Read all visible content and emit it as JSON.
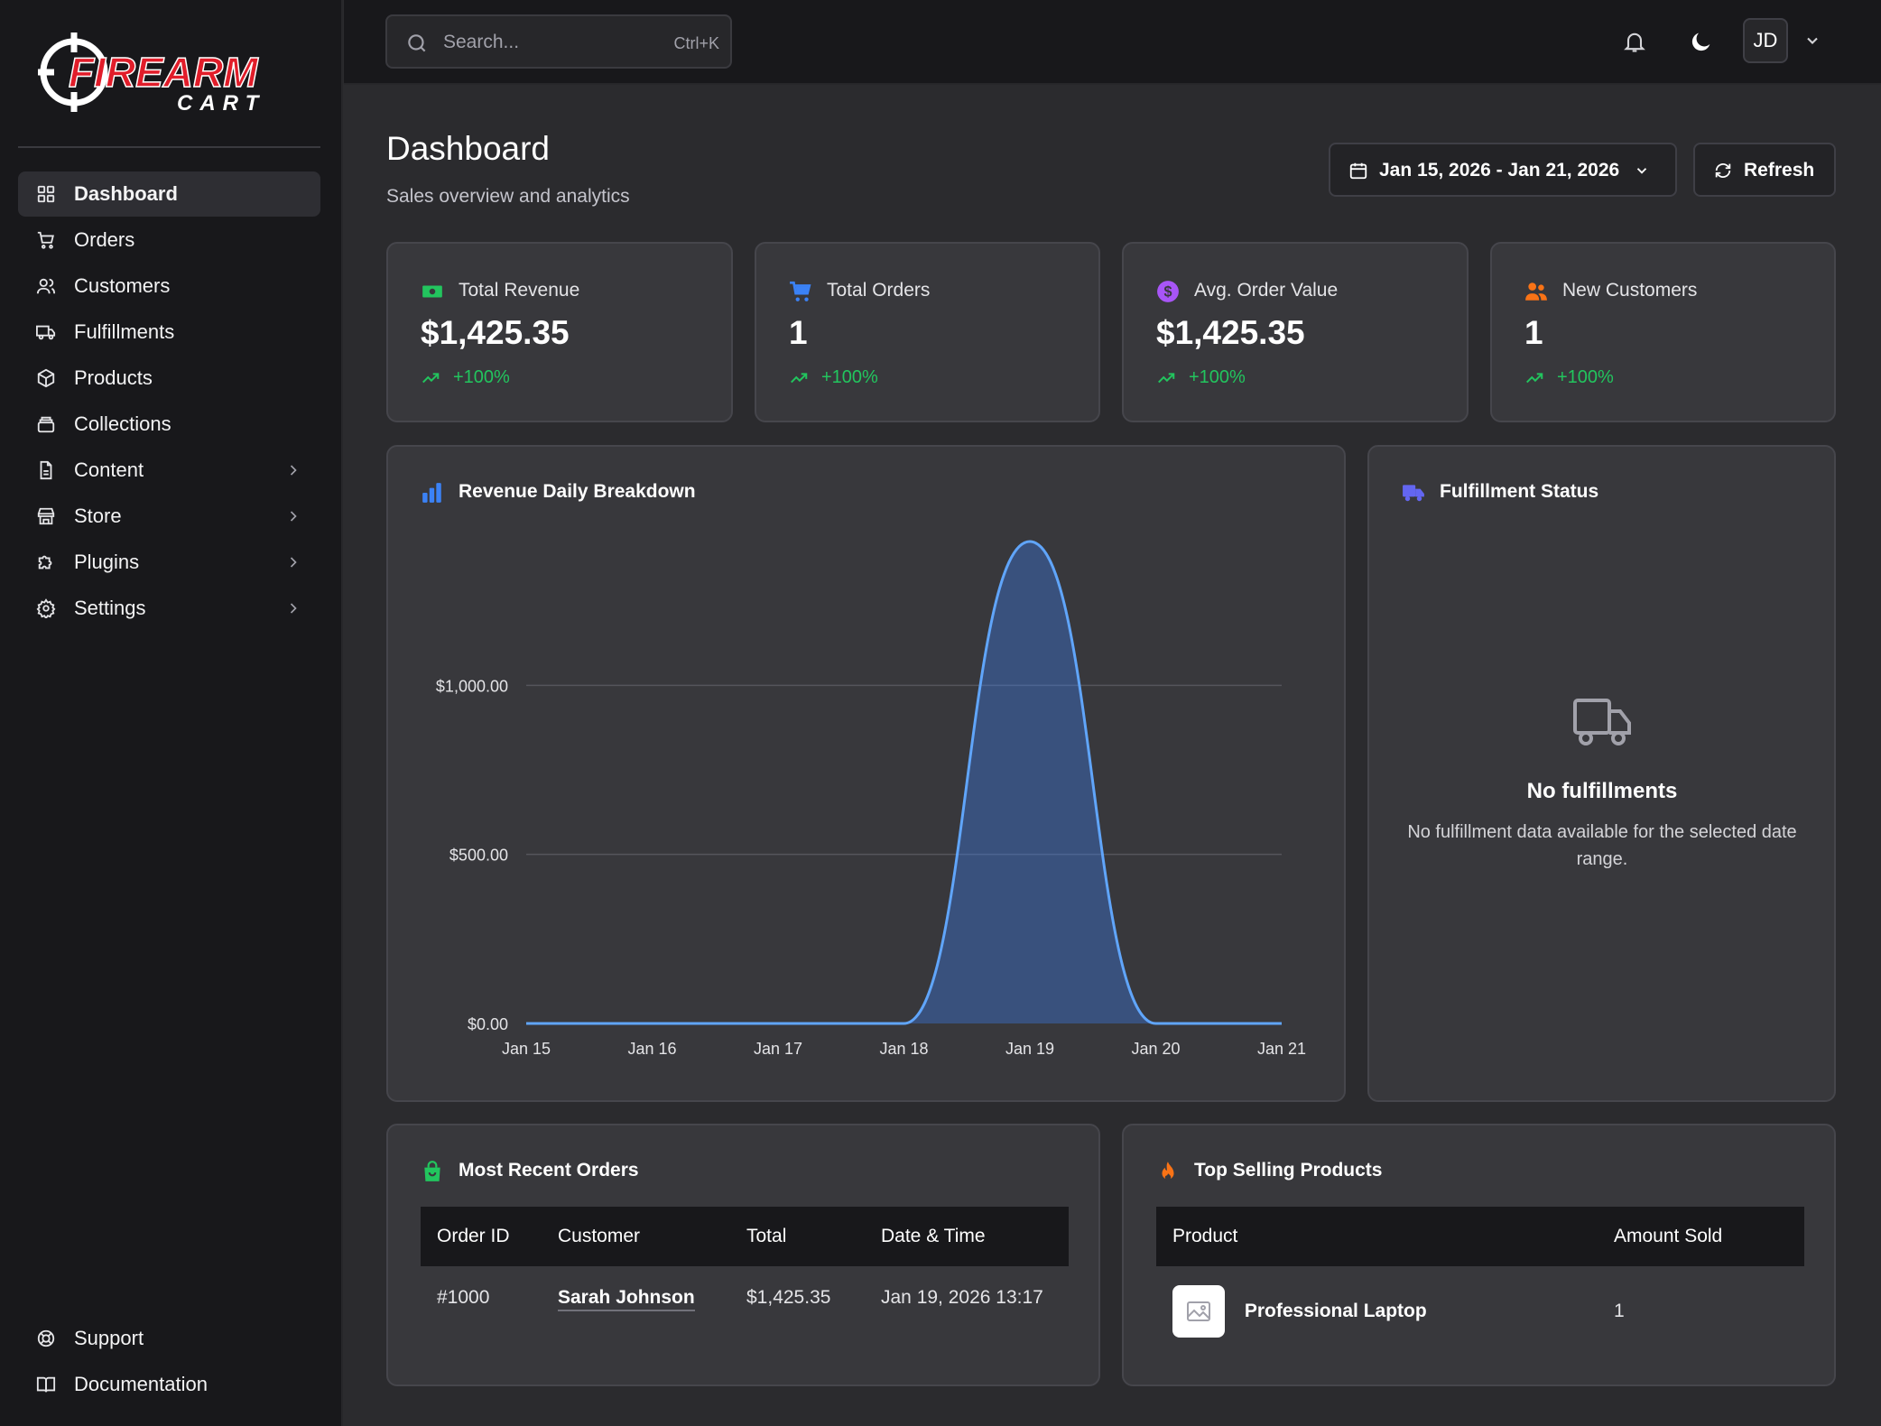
{
  "brand": {
    "name": "FIREARM",
    "sub": "CART",
    "accent": "#e11d2a"
  },
  "nav": {
    "items": [
      {
        "label": "Dashboard",
        "icon": "grid-icon"
      },
      {
        "label": "Orders",
        "icon": "cart-icon"
      },
      {
        "label": "Customers",
        "icon": "users-icon"
      },
      {
        "label": "Fulfillments",
        "icon": "truck-icon"
      },
      {
        "label": "Products",
        "icon": "box-icon"
      },
      {
        "label": "Collections",
        "icon": "layers-icon"
      },
      {
        "label": "Content",
        "icon": "file-icon"
      },
      {
        "label": "Store",
        "icon": "store-icon"
      },
      {
        "label": "Plugins",
        "icon": "puzzle-icon"
      },
      {
        "label": "Settings",
        "icon": "gear-icon"
      }
    ],
    "bottom": [
      {
        "label": "Support",
        "icon": "lifebuoy-icon"
      },
      {
        "label": "Documentation",
        "icon": "book-icon"
      }
    ]
  },
  "topbar": {
    "search_placeholder": "Search...",
    "search_shortcut": "Ctrl+K",
    "avatar_initials": "JD"
  },
  "header": {
    "title": "Dashboard",
    "subtitle": "Sales overview and analytics",
    "date_range": "Jan 15, 2026 - Jan 21, 2026",
    "refresh_label": "Refresh"
  },
  "stats": [
    {
      "label": "Total Revenue",
      "value": "$1,425.35",
      "trend": "+100%",
      "icon": "money-icon",
      "color": "#22c55e"
    },
    {
      "label": "Total Orders",
      "value": "1",
      "trend": "+100%",
      "icon": "cart-icon",
      "color": "#3b82f6"
    },
    {
      "label": "Avg. Order Value",
      "value": "$1,425.35",
      "trend": "+100%",
      "icon": "dollar-circle-icon",
      "color": "#a855f7"
    },
    {
      "label": "New Customers",
      "value": "1",
      "trend": "+100%",
      "icon": "users-icon",
      "color": "#f97316"
    }
  ],
  "revenue_chart": {
    "title": "Revenue Daily Breakdown",
    "icon": "bar-chart-icon"
  },
  "chart_data": {
    "type": "area",
    "title": "Revenue Daily Breakdown",
    "categories": [
      "Jan 15",
      "Jan 16",
      "Jan 17",
      "Jan 18",
      "Jan 19",
      "Jan 20",
      "Jan 21"
    ],
    "values": [
      0,
      0,
      0,
      0,
      1425.35,
      0,
      0
    ],
    "yticks": [
      "$0.00",
      "$500.00",
      "$1,000.00"
    ],
    "ytick_values": [
      0,
      500,
      1000
    ],
    "ylim": [
      0,
      1425.35
    ],
    "grid": true,
    "color": "#60a5fa"
  },
  "fulfillment": {
    "title": "Fulfillment Status",
    "empty_title": "No fulfillments",
    "empty_desc": "No fulfillment data available for the selected date range."
  },
  "recent_orders": {
    "title": "Most Recent Orders",
    "columns": [
      "Order ID",
      "Customer",
      "Total",
      "Date & Time"
    ],
    "rows": [
      {
        "id": "#1000",
        "customer": "Sarah Johnson",
        "total": "$1,425.35",
        "date": "Jan 19, 2026 13:17"
      }
    ]
  },
  "top_products": {
    "title": "Top Selling Products",
    "columns": [
      "Product",
      "Amount Sold"
    ],
    "rows": [
      {
        "name": "Professional Laptop",
        "sold": "1"
      }
    ]
  }
}
